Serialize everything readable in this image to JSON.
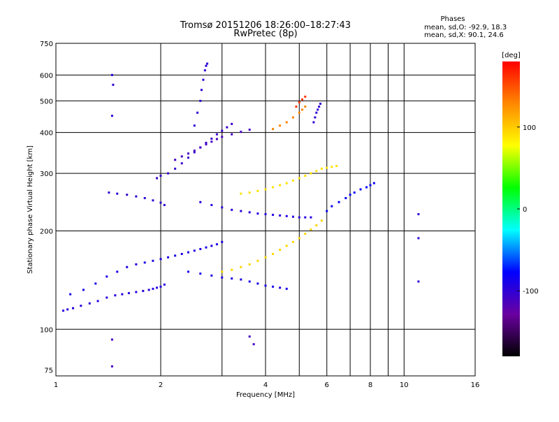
{
  "chart_data": {
    "type": "scatter",
    "title": "Tromsø 20151206 18:26:00–18:27:43",
    "subtitle": "RwPretec (8p)",
    "xlabel": "Frequency [MHz]",
    "ylabel": "Stationary phase Virtual Height [km]",
    "x_scale": "log",
    "y_scale": "log",
    "xlim": [
      1,
      16
    ],
    "ylim": [
      72,
      750
    ],
    "x_ticks": [
      1,
      2,
      4,
      6,
      8,
      10,
      16
    ],
    "y_ticks": [
      75,
      100,
      200,
      300,
      400,
      500,
      600,
      750
    ],
    "x_grid": [
      2,
      3,
      4,
      5,
      6,
      7,
      8,
      9,
      10
    ],
    "y_grid": [
      100,
      200,
      300,
      400,
      500,
      600
    ],
    "grid": true,
    "legend": {
      "title": "Phases",
      "lines": [
        "mean, sd,O: -92.9, 18.3",
        "mean, sd,X:  90.1, 24.6"
      ],
      "placement": "top-right"
    },
    "colorbar": {
      "label": "[deg]",
      "range": [
        -180,
        180
      ],
      "ticks": [
        100,
        0,
        -100
      ],
      "colors": [
        "#ff0000",
        "#ff8800",
        "#ffff00",
        "#00ff00",
        "#00ffff",
        "#0000ff",
        "#6a00a0",
        "#000000"
      ]
    },
    "series": [
      {
        "mode": "O",
        "color_phase": -95,
        "x": [
          1.05,
          1.08,
          1.12,
          1.18,
          1.25,
          1.32,
          1.4,
          1.48,
          1.55,
          1.62,
          1.7,
          1.78,
          1.85,
          1.9,
          1.95,
          2.0,
          2.05
        ],
        "y": [
          114,
          115,
          116,
          118,
          120,
          122,
          125,
          127,
          128,
          129,
          130,
          131,
          132,
          133,
          134,
          135,
          137
        ]
      },
      {
        "mode": "O",
        "color_phase": -90,
        "x": [
          1.1,
          1.2,
          1.3,
          1.4,
          1.5,
          1.6,
          1.7,
          1.8,
          1.9,
          2.0,
          2.1,
          2.2,
          2.3,
          2.4,
          2.5,
          2.6,
          2.7,
          2.8,
          2.9,
          3.0
        ],
        "y": [
          128,
          132,
          138,
          145,
          150,
          155,
          158,
          160,
          162,
          164,
          166,
          168,
          170,
          172,
          174,
          176,
          178,
          180,
          182,
          185
        ]
      },
      {
        "mode": "O",
        "color_phase": -100,
        "x": [
          1.42,
          1.5,
          1.6,
          1.7,
          1.8,
          1.9,
          2.0,
          2.05
        ],
        "y": [
          262,
          260,
          258,
          255,
          252,
          248,
          244,
          240
        ]
      },
      {
        "mode": "O",
        "color_phase": -105,
        "x": [
          1.95,
          2.0,
          2.1,
          2.2,
          2.3,
          2.4,
          2.5,
          2.6,
          2.7,
          2.8,
          2.9,
          3.0,
          3.1,
          3.2
        ],
        "y": [
          290,
          295,
          300,
          310,
          322,
          335,
          348,
          360,
          372,
          383,
          395,
          405,
          415,
          425
        ]
      },
      {
        "mode": "O",
        "color_phase": -110,
        "x": [
          2.2,
          2.3,
          2.4,
          2.5,
          2.6,
          2.7,
          2.8,
          2.9,
          3.0,
          3.2,
          3.4,
          3.6
        ],
        "y": [
          330,
          338,
          345,
          352,
          360,
          368,
          375,
          382,
          388,
          395,
          402,
          408
        ]
      },
      {
        "mode": "O",
        "color_phase": -100,
        "x": [
          2.5,
          2.55,
          2.6,
          2.62,
          2.65,
          2.68,
          2.7,
          2.72
        ],
        "y": [
          420,
          460,
          500,
          540,
          580,
          620,
          640,
          650
        ]
      },
      {
        "mode": "O",
        "color_phase": -95,
        "x": [
          2.6,
          2.8,
          3.0,
          3.2,
          3.4,
          3.6,
          3.8,
          4.0,
          4.2,
          4.4,
          4.6,
          4.8,
          5.0,
          5.2,
          5.4
        ],
        "y": [
          245,
          240,
          236,
          232,
          230,
          228,
          226,
          225,
          224,
          223,
          222,
          221,
          220,
          220,
          220
        ]
      },
      {
        "mode": "O",
        "color_phase": -90,
        "x": [
          2.4,
          2.6,
          2.8,
          3.0,
          3.2,
          3.4,
          3.6,
          3.8,
          4.0,
          4.2,
          4.4,
          4.6
        ],
        "y": [
          150,
          148,
          146,
          144,
          143,
          142,
          140,
          138,
          136,
          135,
          134,
          133
        ]
      },
      {
        "mode": "O",
        "color_phase": -100,
        "x": [
          5.5,
          5.55,
          5.6,
          5.65,
          5.7,
          5.75
        ],
        "y": [
          430,
          445,
          460,
          470,
          480,
          490
        ]
      },
      {
        "mode": "X",
        "color_phase": 95,
        "x": [
          3.0,
          3.2,
          3.4,
          3.6,
          3.8,
          4.0,
          4.2,
          4.4,
          4.6,
          4.8,
          5.0,
          5.2,
          5.4,
          5.6,
          5.8
        ],
        "y": [
          150,
          152,
          155,
          158,
          162,
          166,
          170,
          175,
          180,
          185,
          190,
          196,
          202,
          208,
          215
        ]
      },
      {
        "mode": "X",
        "color_phase": 90,
        "x": [
          3.4,
          3.6,
          3.8,
          4.0,
          4.2,
          4.4,
          4.6,
          4.8,
          5.0,
          5.2,
          5.4,
          5.6,
          5.8,
          6.0,
          6.2,
          6.4
        ],
        "y": [
          260,
          262,
          265,
          268,
          272,
          276,
          280,
          285,
          290,
          295,
          300,
          305,
          310,
          312,
          314,
          316
        ]
      },
      {
        "mode": "X",
        "color_phase": 130,
        "x": [
          4.2,
          4.4,
          4.6,
          4.8,
          5.0,
          5.1,
          5.2
        ],
        "y": [
          410,
          420,
          430,
          445,
          460,
          470,
          480
        ]
      },
      {
        "mode": "X",
        "color_phase": 160,
        "x": [
          4.9,
          5.0,
          5.1,
          5.2
        ],
        "y": [
          480,
          495,
          505,
          515
        ]
      },
      {
        "mode": "O",
        "color_phase": -80,
        "x": [
          6.0,
          6.2,
          6.5,
          6.8,
          7.0,
          7.2,
          7.5,
          7.8,
          8.0,
          8.2
        ],
        "y": [
          230,
          238,
          245,
          252,
          258,
          262,
          268,
          272,
          276,
          280
        ]
      },
      {
        "mode": "O",
        "color_phase": -100,
        "x": [
          1.45,
          1.46,
          1.45,
          11.0,
          11.0,
          11.0
        ],
        "y": [
          600,
          560,
          450,
          225,
          190,
          140
        ]
      },
      {
        "mode": "O",
        "color_phase": -110,
        "x": [
          3.6,
          3.7,
          1.45,
          1.45
        ],
        "y": [
          95,
          90,
          93,
          77
        ]
      }
    ]
  }
}
